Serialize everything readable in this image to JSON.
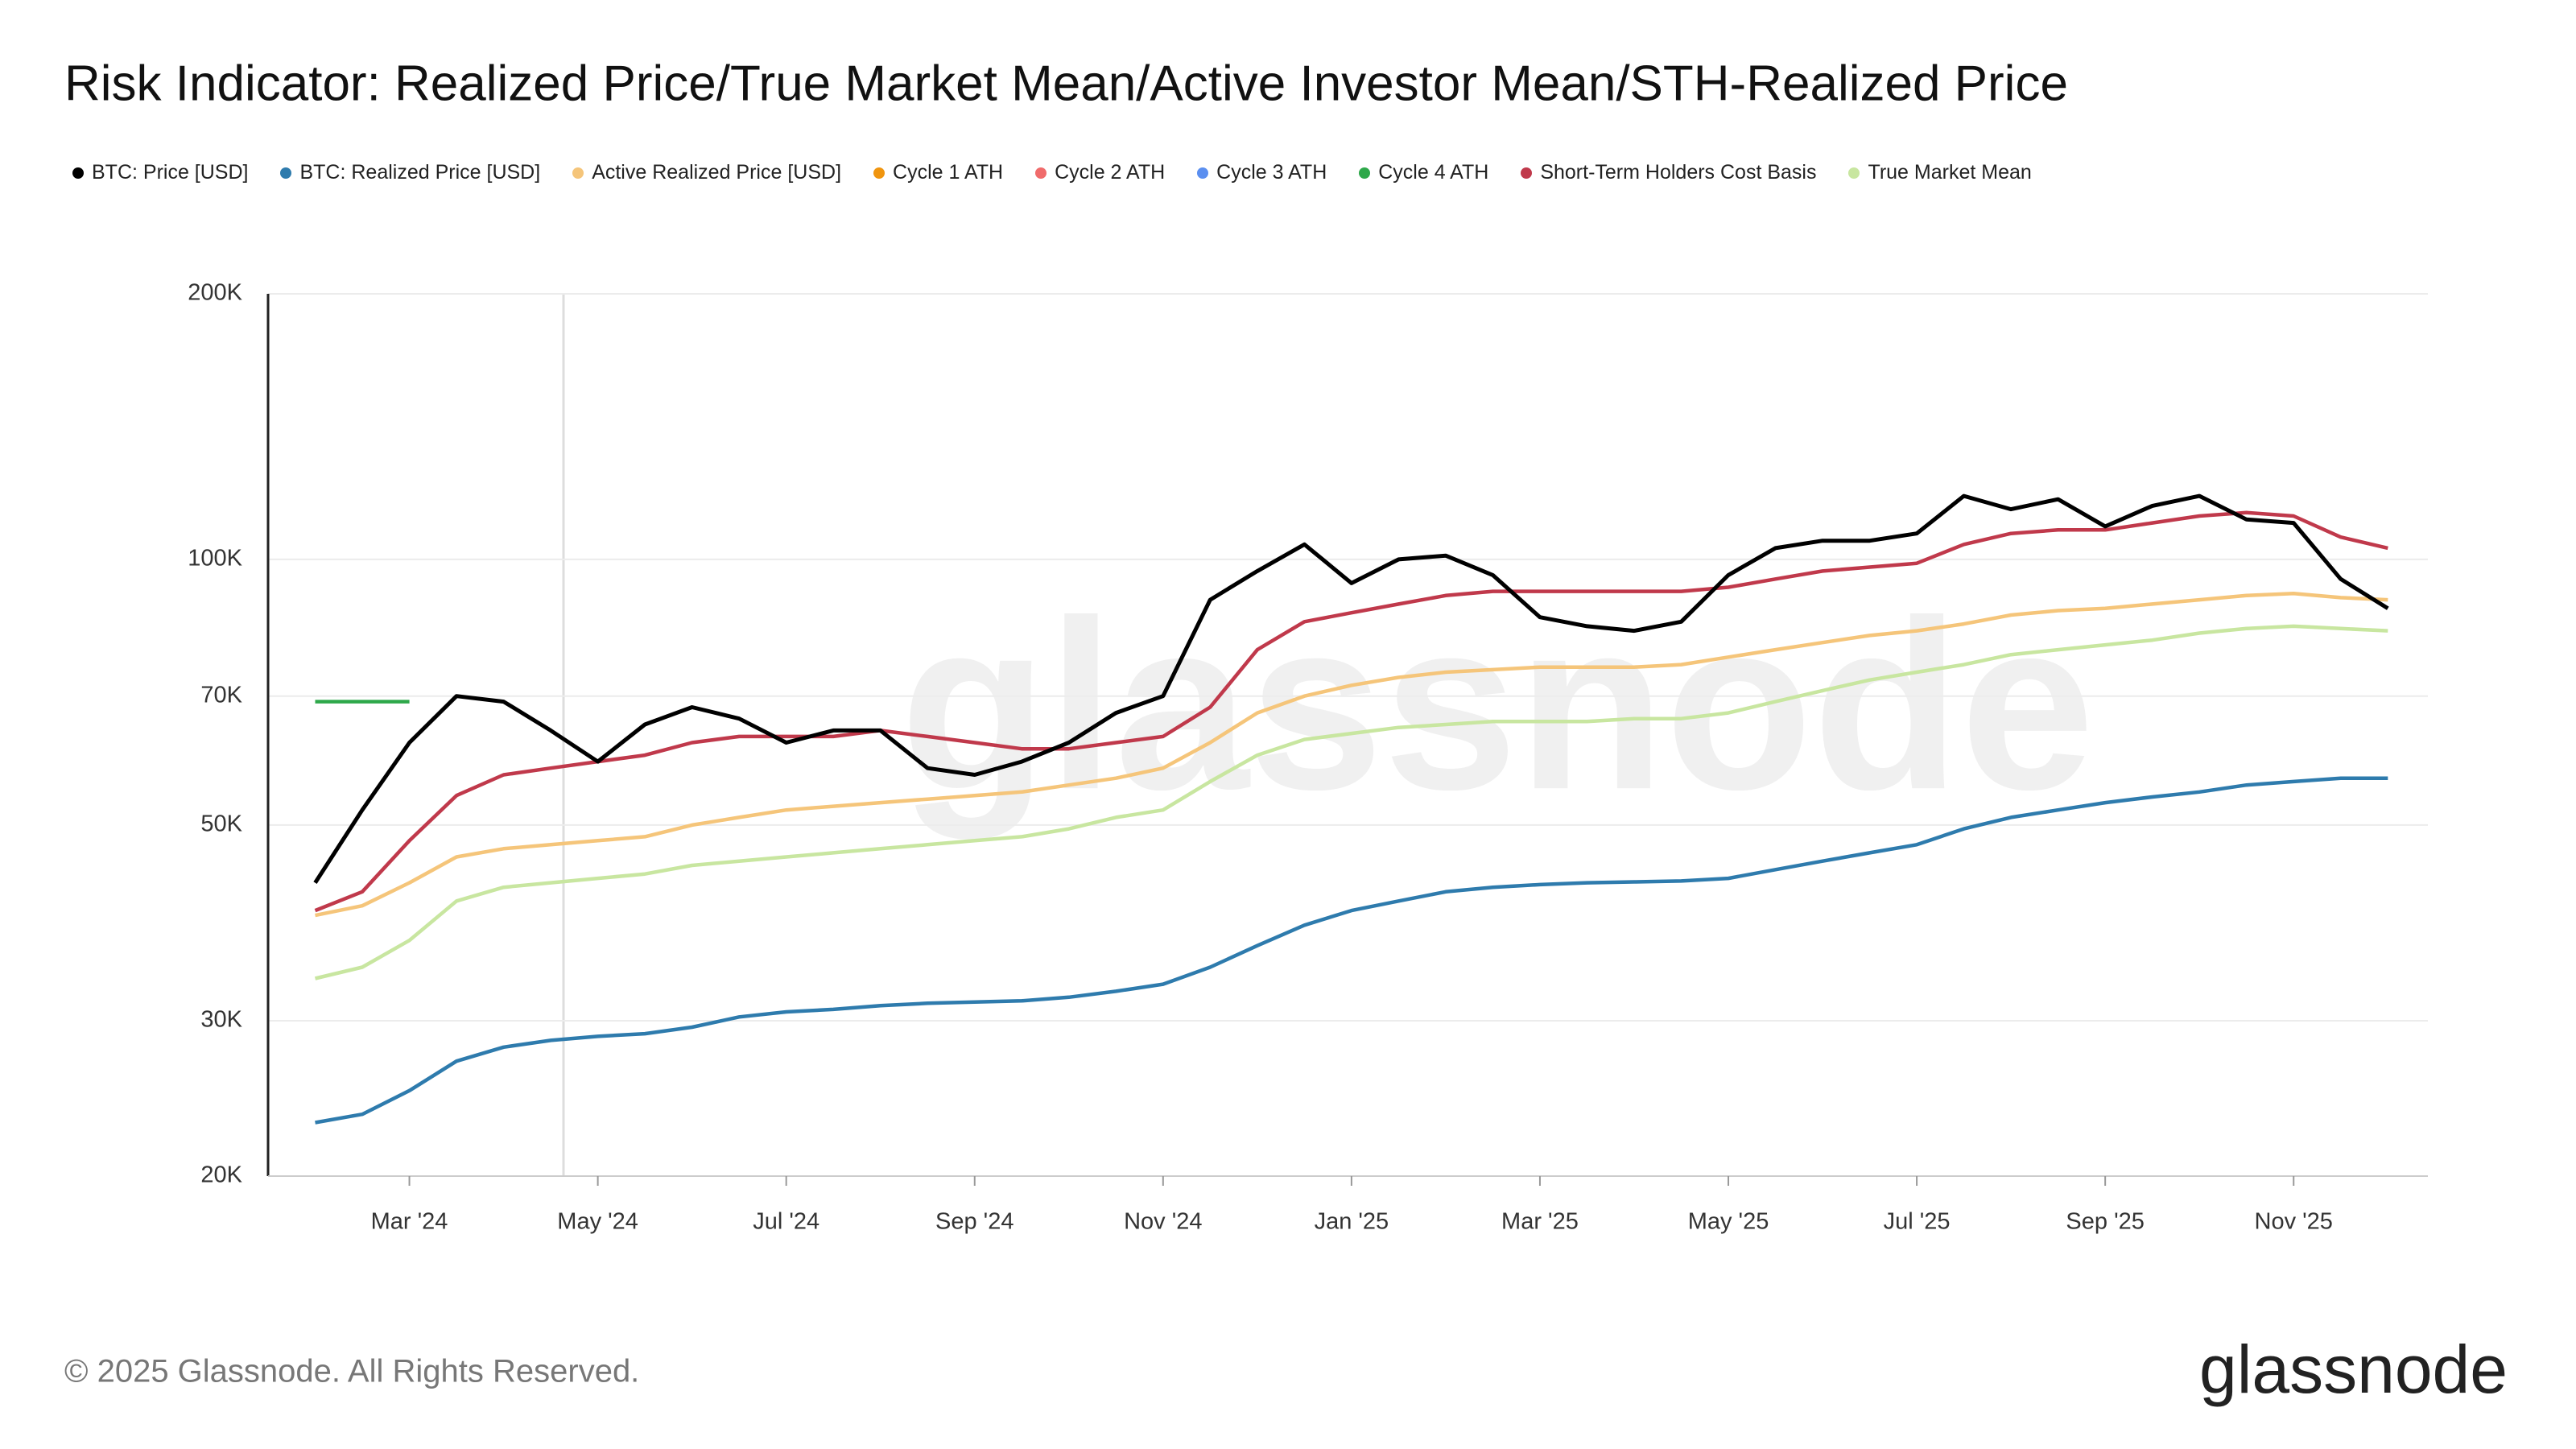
{
  "chart_data": {
    "type": "line",
    "title": "Risk Indicator: Realized Price/True Market Mean/Active Investor Mean/STH-Realized Price",
    "footer": "© 2025 Glassnode. All Rights Reserved.",
    "brand": "glassnode",
    "log_scale": true,
    "grid": true,
    "categories": [
      null,
      null,
      "Mar '24",
      null,
      null,
      null,
      "May '24",
      null,
      null,
      null,
      "Jul '24",
      null,
      null,
      null,
      "Sep '24",
      null,
      null,
      null,
      "Nov '24",
      null,
      null,
      null,
      "Jan '25",
      null,
      null,
      null,
      "Mar '25",
      null,
      null,
      null,
      "May '25",
      null,
      null,
      null,
      "Jul '25",
      null,
      null,
      null,
      "Sep '25",
      null,
      null,
      null,
      "Nov '25",
      null,
      null
    ],
    "ylim": [
      20000,
      200000
    ],
    "yticks": [
      {
        "value": 20000,
        "label": "20K"
      },
      {
        "value": 30000,
        "label": "30K"
      },
      {
        "value": 50000,
        "label": "50K"
      },
      {
        "value": 70000,
        "label": "70K"
      },
      {
        "value": 100000,
        "label": "100K"
      },
      {
        "value": 200000,
        "label": "200K"
      }
    ],
    "series": [
      {
        "name": "BTC: Price [USD]",
        "color": "#000000",
        "values": [
          43000,
          52000,
          62000,
          70000,
          69000,
          64000,
          59000,
          65000,
          68000,
          66000,
          62000,
          64000,
          64000,
          58000,
          57000,
          59000,
          62000,
          67000,
          70000,
          90000,
          97000,
          104000,
          94000,
          100000,
          101000,
          96000,
          86000,
          84000,
          83000,
          85000,
          96000,
          103000,
          105000,
          105000,
          107000,
          118000,
          114000,
          117000,
          109000,
          115000,
          118000,
          111000,
          110000,
          95000,
          88000
        ]
      },
      {
        "name": "BTC: Realized Price [USD]",
        "color": "#2e7bad",
        "values": [
          23000,
          23500,
          25000,
          27000,
          28000,
          28500,
          28800,
          29000,
          29500,
          30300,
          30700,
          30900,
          31200,
          31400,
          31500,
          31600,
          31900,
          32400,
          33000,
          34500,
          36500,
          38500,
          40000,
          41000,
          42000,
          42500,
          42800,
          43000,
          43100,
          43200,
          43500,
          44500,
          45500,
          46500,
          47500,
          49500,
          51000,
          52000,
          53000,
          53800,
          54500,
          55500,
          56000,
          56500,
          56500
        ]
      },
      {
        "name": "Active Realized Price [USD]",
        "color": "#f5c57a",
        "values": [
          39500,
          40500,
          43000,
          46000,
          47000,
          47500,
          48000,
          48500,
          50000,
          51000,
          52000,
          52500,
          53000,
          53500,
          54000,
          54500,
          55500,
          56500,
          58000,
          62000,
          67000,
          70000,
          72000,
          73500,
          74500,
          75000,
          75500,
          75500,
          75500,
          76000,
          77500,
          79000,
          80500,
          82000,
          83000,
          84500,
          86500,
          87500,
          88000,
          89000,
          90000,
          91000,
          91500,
          90500,
          90000
        ]
      },
      {
        "name": "Cycle 1 ATH",
        "color": "#f0950f",
        "values": [
          null,
          null,
          null,
          null,
          null,
          null,
          null,
          null,
          null,
          null,
          null,
          null,
          null,
          null,
          null,
          null,
          null,
          null,
          null,
          null,
          null,
          null,
          null,
          null,
          null,
          null,
          null,
          null,
          null,
          null,
          null,
          null,
          null,
          null,
          null,
          null,
          null,
          null,
          null,
          null,
          null,
          null,
          null,
          null,
          null
        ]
      },
      {
        "name": "Cycle 2 ATH",
        "color": "#f06b6b",
        "values": [
          null,
          null,
          null,
          null,
          null,
          null,
          null,
          null,
          null,
          null,
          null,
          null,
          null,
          null,
          null,
          null,
          null,
          null,
          null,
          null,
          null,
          null,
          null,
          null,
          null,
          null,
          null,
          null,
          null,
          null,
          null,
          null,
          null,
          null,
          null,
          null,
          null,
          null,
          null,
          null,
          null,
          null,
          null,
          null,
          null
        ]
      },
      {
        "name": "Cycle 3 ATH",
        "color": "#5b8ff0",
        "values": [
          null,
          null,
          null,
          null,
          null,
          null,
          null,
          null,
          null,
          null,
          null,
          null,
          null,
          null,
          null,
          null,
          null,
          null,
          null,
          null,
          null,
          null,
          null,
          null,
          null,
          null,
          null,
          null,
          null,
          null,
          null,
          null,
          null,
          null,
          null,
          null,
          null,
          null,
          null,
          null,
          null,
          null,
          null,
          null,
          null
        ]
      },
      {
        "name": "Cycle 4 ATH",
        "color": "#2ea84a",
        "values": [
          69000,
          69000,
          69000,
          null,
          null,
          null,
          null,
          null,
          null,
          null,
          null,
          null,
          null,
          null,
          null,
          null,
          null,
          null,
          null,
          null,
          null,
          null,
          null,
          null,
          null,
          null,
          null,
          null,
          null,
          null,
          null,
          null,
          null,
          null,
          null,
          null,
          null,
          null,
          null,
          null,
          null,
          null,
          null,
          null,
          null
        ]
      },
      {
        "name": "Short-Term Holders Cost Basis",
        "color": "#c0394b",
        "values": [
          40000,
          42000,
          48000,
          54000,
          57000,
          58000,
          59000,
          60000,
          62000,
          63000,
          63000,
          63000,
          64000,
          63000,
          62000,
          61000,
          61000,
          62000,
          63000,
          68000,
          79000,
          85000,
          87000,
          89000,
          91000,
          92000,
          92000,
          92000,
          92000,
          92000,
          93000,
          95000,
          97000,
          98000,
          99000,
          104000,
          107000,
          108000,
          108000,
          110000,
          112000,
          113000,
          112000,
          106000,
          103000
        ]
      },
      {
        "name": "True Market Mean",
        "color": "#c8e6a0",
        "values": [
          33500,
          34500,
          37000,
          41000,
          42500,
          43000,
          43500,
          44000,
          45000,
          45500,
          46000,
          46500,
          47000,
          47500,
          48000,
          48500,
          49500,
          51000,
          52000,
          56000,
          60000,
          62500,
          63500,
          64500,
          65000,
          65500,
          65500,
          65500,
          66000,
          66000,
          67000,
          69000,
          71000,
          73000,
          74500,
          76000,
          78000,
          79000,
          80000,
          81000,
          82500,
          83500,
          84000,
          83500,
          83000
        ]
      }
    ]
  }
}
